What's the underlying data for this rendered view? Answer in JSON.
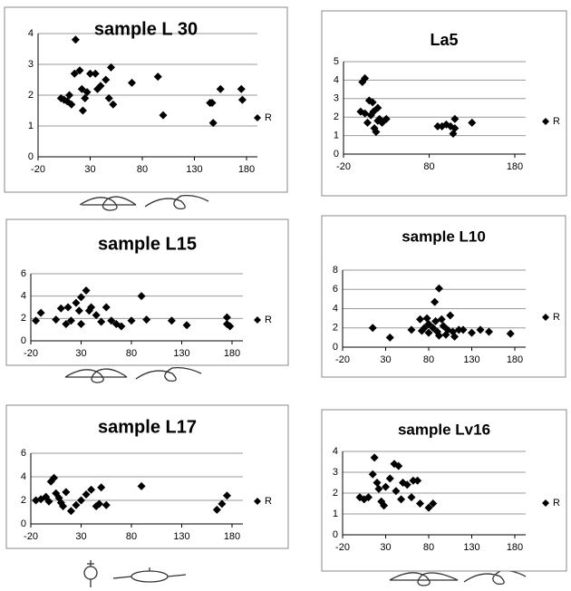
{
  "chart_data": [
    {
      "type": "scatter",
      "title": "sample  L 30",
      "series": [
        {
          "name": "R",
          "color": "#000000",
          "x": [
            2,
            5,
            8,
            10,
            12,
            15,
            16,
            20,
            22,
            23,
            25,
            27,
            30,
            35,
            37,
            40,
            45,
            48,
            50,
            52,
            70,
            95,
            100,
            145,
            147,
            148,
            155,
            175,
            176
          ],
          "values": [
            1.9,
            1.85,
            1.8,
            2.0,
            1.7,
            2.7,
            3.8,
            2.8,
            2.2,
            1.5,
            1.9,
            2.1,
            2.7,
            2.7,
            2.2,
            2.3,
            2.5,
            1.9,
            2.9,
            1.7,
            2.4,
            2.6,
            1.35,
            1.75,
            1.75,
            1.1,
            2.2,
            2.2,
            1.85
          ]
        }
      ],
      "xlim": [
        -20,
        180
      ],
      "xticks": [
        -20,
        30,
        80,
        130,
        180
      ],
      "ylim": [
        0,
        4
      ],
      "yticks": [
        0,
        1,
        2,
        3,
        4
      ],
      "grid": true,
      "legend": "right"
    },
    {
      "type": "scatter",
      "title": "La5",
      "series": [
        {
          "name": "R",
          "color": "#000000",
          "x": [
            0,
            2,
            5,
            5,
            8,
            10,
            12,
            14,
            15,
            16,
            18,
            20,
            20,
            22,
            25,
            30,
            90,
            95,
            100,
            105,
            108,
            110,
            110,
            130
          ],
          "values": [
            2.3,
            3.9,
            4.1,
            2.2,
            1.7,
            2.9,
            2.1,
            2.8,
            2.3,
            1.4,
            1.2,
            2.5,
            1.8,
            1.9,
            1.7,
            1.9,
            1.5,
            1.5,
            1.6,
            1.5,
            1.1,
            1.9,
            1.4,
            1.7
          ]
        }
      ],
      "xlim": [
        -20,
        180
      ],
      "xticks": [
        -20,
        80,
        180
      ],
      "ylim": [
        0,
        5
      ],
      "yticks": [
        0,
        1,
        2,
        3,
        4,
        5
      ],
      "grid": true,
      "legend": "right"
    },
    {
      "type": "scatter",
      "title": "sample L15",
      "series": [
        {
          "name": "R",
          "color": "#000000",
          "x": [
            -15,
            -10,
            5,
            10,
            15,
            17,
            20,
            25,
            28,
            30,
            30,
            35,
            38,
            40,
            45,
            50,
            55,
            60,
            65,
            70,
            80,
            90,
            95,
            120,
            135,
            175,
            175,
            178
          ],
          "values": [
            1.8,
            2.5,
            1.9,
            2.9,
            1.5,
            3.0,
            1.8,
            3.4,
            2.7,
            1.5,
            3.9,
            4.5,
            2.7,
            3.0,
            2.3,
            1.7,
            3.0,
            1.8,
            1.5,
            1.3,
            1.8,
            4.0,
            1.9,
            1.8,
            1.4,
            2.1,
            1.5,
            1.3
          ]
        }
      ],
      "xlim": [
        -20,
        180
      ],
      "xticks": [
        -20,
        30,
        80,
        130,
        180
      ],
      "ylim": [
        0,
        6
      ],
      "yticks": [
        0,
        2,
        4,
        6
      ],
      "grid": true,
      "legend": "right"
    },
    {
      "type": "scatter",
      "title": "sample L10",
      "series": [
        {
          "name": "R",
          "color": "#000000",
          "x": [
            15,
            35,
            60,
            70,
            72,
            75,
            78,
            80,
            80,
            85,
            87,
            88,
            90,
            92,
            92,
            95,
            97,
            100,
            102,
            105,
            108,
            110,
            115,
            120,
            130,
            140,
            150,
            175
          ],
          "values": [
            2.0,
            1.0,
            1.8,
            2.9,
            1.7,
            2.0,
            3.0,
            2.4,
            1.5,
            2.0,
            4.7,
            2.7,
            1.6,
            6.1,
            1.2,
            2.9,
            2.2,
            1.3,
            1.8,
            3.3,
            1.6,
            1.1,
            1.8,
            1.8,
            1.5,
            1.8,
            1.6,
            1.4
          ]
        }
      ],
      "xlim": [
        -20,
        180
      ],
      "xticks": [
        -20,
        30,
        80,
        130,
        180
      ],
      "ylim": [
        0,
        8
      ],
      "yticks": [
        0,
        2,
        4,
        6,
        8
      ],
      "grid": true,
      "legend": "right"
    },
    {
      "type": "scatter",
      "title": "sample L17",
      "series": [
        {
          "name": "R",
          "color": "#000000",
          "x": [
            -15,
            -10,
            -5,
            -2,
            0,
            3,
            5,
            8,
            10,
            12,
            15,
            20,
            25,
            30,
            35,
            40,
            45,
            48,
            50,
            55,
            90,
            165,
            170,
            175
          ],
          "values": [
            2.0,
            2.1,
            2.3,
            1.9,
            3.6,
            3.9,
            2.6,
            2.2,
            1.8,
            1.5,
            2.7,
            1.1,
            1.6,
            2.0,
            2.5,
            2.9,
            1.5,
            1.7,
            3.1,
            1.6,
            3.2,
            1.2,
            1.7,
            2.4
          ]
        }
      ],
      "xlim": [
        -20,
        180
      ],
      "xticks": [
        -20,
        30,
        80,
        130,
        180
      ],
      "ylim": [
        0,
        6
      ],
      "yticks": [
        0,
        2,
        4,
        6
      ],
      "grid": true,
      "legend": "right"
    },
    {
      "type": "scatter",
      "title": "sample Lv16",
      "series": [
        {
          "name": "R",
          "color": "#000000",
          "x": [
            0,
            5,
            10,
            15,
            17,
            20,
            22,
            25,
            28,
            30,
            35,
            40,
            42,
            45,
            48,
            50,
            55,
            60,
            62,
            67,
            70,
            80,
            85
          ],
          "values": [
            1.8,
            1.7,
            1.8,
            2.9,
            3.7,
            2.5,
            2.2,
            1.6,
            1.4,
            2.3,
            2.7,
            3.4,
            2.1,
            3.3,
            1.7,
            2.5,
            2.4,
            1.8,
            2.6,
            2.6,
            1.5,
            1.3,
            1.5
          ]
        }
      ],
      "xlim": [
        -20,
        180
      ],
      "xticks": [
        -20,
        30,
        80,
        130,
        180
      ],
      "ylim": [
        0,
        4
      ],
      "yticks": [
        0,
        1,
        2,
        3,
        4
      ],
      "grid": true,
      "legend": "right"
    }
  ]
}
